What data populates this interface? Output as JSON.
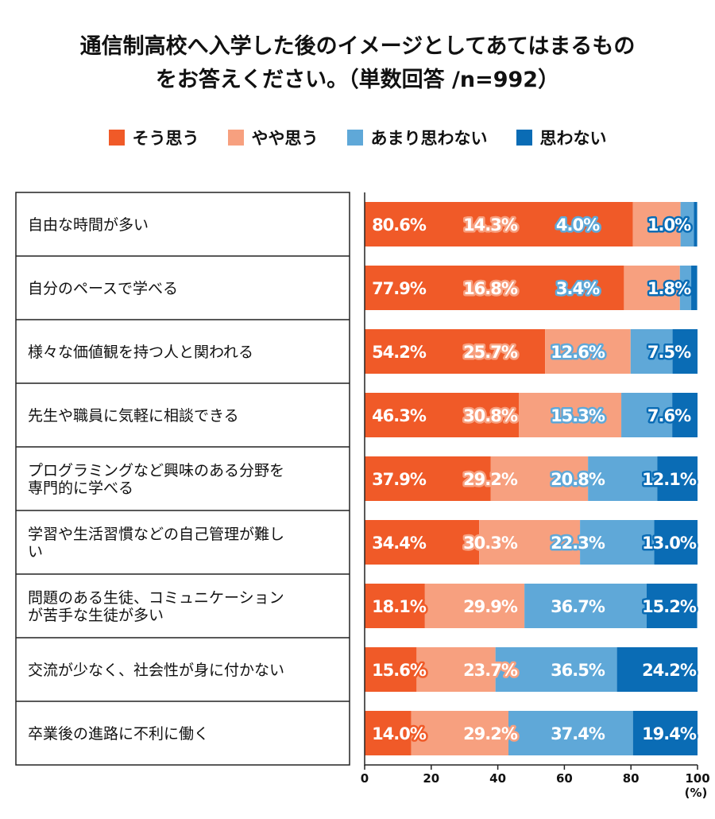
{
  "title": {
    "line1": "通信制高校へ入学した後のイメージとしてあてはまるもの",
    "line2": "をお答えください。（単数回答 /n=992）"
  },
  "colors": {
    "そう思う": "#f05a28",
    "やや思う": "#f7a07f",
    "あまり思わない": "#5fa8d8",
    "思わない": "#0a6cb5"
  },
  "chart_data": {
    "type": "bar",
    "orientation": "horizontal",
    "stacked": true,
    "title": "通信制高校へ入学した後のイメージとしてあてはまるものをお答えください。（単数回答 /n=992）",
    "unit": "(%)",
    "xlim": [
      0,
      100
    ],
    "xticks": [
      0,
      20,
      40,
      60,
      80,
      100
    ],
    "legend_position": "top",
    "categories": [
      [
        "自由な時間が多い"
      ],
      [
        "自分のペースで学べる"
      ],
      [
        "様々な価値観を持つ人と関われる"
      ],
      [
        "先生や職員に気軽に相談できる"
      ],
      [
        "プログラミングなど興味のある分野を",
        "専門的に学べる"
      ],
      [
        "学習や生活習慣などの自己管理が難し",
        "い"
      ],
      [
        "問題のある生徒、コミュニケーション",
        "が苦手な生徒が多い"
      ],
      [
        "交流が少なく、社会性が身に付かない"
      ],
      [
        "卒業後の進路に不利に働く"
      ]
    ],
    "series": [
      {
        "name": "そう思う",
        "values": [
          80.6,
          77.9,
          54.2,
          46.3,
          37.9,
          34.4,
          18.1,
          15.6,
          14.0
        ],
        "labels": [
          "80.6%",
          "77.9%",
          "54.2%",
          "46.3%",
          "37.9%",
          "34.4%",
          "18.1%",
          "15.6%",
          "14.0%"
        ]
      },
      {
        "name": "やや思う",
        "values": [
          14.3,
          16.8,
          25.7,
          30.8,
          29.2,
          30.3,
          29.9,
          23.7,
          29.2
        ],
        "labels": [
          "14.3%",
          "16.8%",
          "25.7%",
          "30.8%",
          "29.2%",
          "30.3%",
          "29.9%",
          "23.7%",
          "29.2%"
        ]
      },
      {
        "name": "あまり思わない",
        "values": [
          4.0,
          3.4,
          12.6,
          15.3,
          20.8,
          22.3,
          36.7,
          36.5,
          37.4
        ],
        "labels": [
          "4.0%",
          "3.4%",
          "12.6%",
          "15.3%",
          "20.8%",
          "22.3%",
          "36.7%",
          "36.5%",
          "37.4%"
        ]
      },
      {
        "name": "思わない",
        "values": [
          1.0,
          1.8,
          7.5,
          7.6,
          12.1,
          13.0,
          15.2,
          24.2,
          19.4
        ],
        "labels": [
          "1.0%",
          "1.8%",
          "7.5%",
          "7.6%",
          "12.1%",
          "13.0%",
          "15.2%",
          "24.2%",
          "19.4%"
        ]
      }
    ]
  }
}
